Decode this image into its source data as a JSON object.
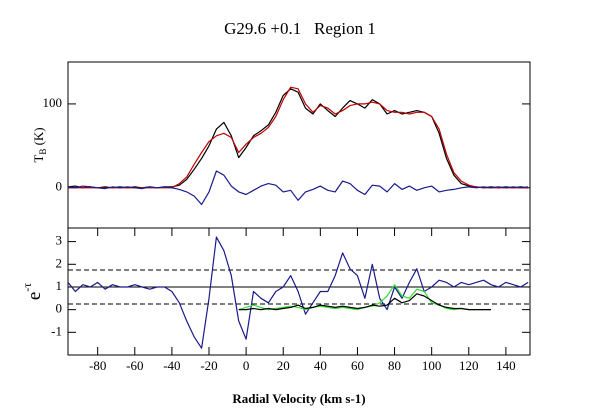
{
  "chart_data": [
    {
      "type": "line",
      "title": "G29.6 +0.1   Region 1",
      "ylabel": {
        "base": "T",
        "sub": "B",
        "rest": " (K)"
      },
      "x": [
        -96,
        -92,
        -88,
        -84,
        -80,
        -76,
        -72,
        -68,
        -64,
        -60,
        -56,
        -52,
        -48,
        -44,
        -40,
        -36,
        -32,
        -28,
        -24,
        -20,
        -16,
        -12,
        -8,
        -4,
        0,
        4,
        8,
        12,
        16,
        20,
        24,
        28,
        32,
        36,
        40,
        44,
        48,
        52,
        56,
        60,
        64,
        68,
        72,
        76,
        80,
        84,
        88,
        92,
        96,
        100,
        104,
        108,
        112,
        116,
        120,
        124,
        128,
        132,
        136,
        140,
        144,
        148,
        152
      ],
      "xlim": [
        -96,
        153
      ],
      "ylim": [
        -48,
        150
      ],
      "yticks": [
        0,
        100
      ],
      "series": [
        {
          "color": "#000000",
          "values": [
            1,
            2,
            0,
            1,
            0,
            1,
            0,
            1,
            0,
            1,
            0,
            1,
            0,
            1,
            1,
            3,
            10,
            22,
            35,
            50,
            70,
            78,
            62,
            36,
            48,
            62,
            68,
            75,
            90,
            110,
            118,
            114,
            95,
            88,
            100,
            92,
            85,
            95,
            104,
            100,
            95,
            105,
            100,
            88,
            92,
            88,
            90,
            92,
            90,
            85,
            65,
            35,
            15,
            5,
            2,
            1,
            0,
            1,
            0,
            1,
            0,
            1,
            0
          ]
        },
        {
          "color": "#c00000",
          "values": [
            0,
            0,
            0,
            0,
            0,
            0,
            0,
            0,
            0,
            0,
            0,
            0,
            0,
            0,
            0,
            5,
            13,
            28,
            42,
            55,
            62,
            65,
            60,
            42,
            52,
            60,
            65,
            72,
            85,
            105,
            120,
            118,
            100,
            90,
            98,
            95,
            88,
            92,
            98,
            100,
            100,
            102,
            100,
            92,
            90,
            90,
            88,
            90,
            90,
            85,
            70,
            40,
            18,
            8,
            3,
            1,
            0,
            0,
            0,
            0,
            0,
            0,
            0
          ]
        },
        {
          "color": "#1a1a8c",
          "values": [
            1,
            0,
            2,
            1,
            0,
            -1,
            1,
            0,
            1,
            0,
            -1,
            1,
            0,
            1,
            0,
            -2,
            -5,
            -10,
            -20,
            -5,
            20,
            15,
            2,
            -5,
            -8,
            -3,
            2,
            5,
            3,
            -5,
            -3,
            -15,
            -5,
            -2,
            2,
            -3,
            -5,
            8,
            5,
            -3,
            -8,
            3,
            2,
            -5,
            5,
            -2,
            2,
            -3,
            0,
            2,
            -5,
            -3,
            -2,
            0,
            1,
            0,
            1,
            0,
            1,
            0,
            1,
            0,
            1
          ]
        }
      ]
    },
    {
      "type": "line",
      "xlabel": "Radial Velocity (km s-1)",
      "ylabel": {
        "base": "e",
        "sup": "-τ"
      },
      "x": [
        -96,
        -92,
        -88,
        -84,
        -80,
        -76,
        -72,
        -68,
        -64,
        -60,
        -56,
        -52,
        -48,
        -44,
        -40,
        -36,
        -32,
        -28,
        -24,
        -20,
        -16,
        -12,
        -8,
        -4,
        0,
        4,
        8,
        12,
        16,
        20,
        24,
        28,
        32,
        36,
        40,
        44,
        48,
        52,
        56,
        60,
        64,
        68,
        72,
        76,
        80,
        84,
        88,
        92,
        96,
        100,
        104,
        108,
        112,
        116,
        120,
        124,
        128,
        132,
        136,
        140,
        144,
        148,
        152
      ],
      "xlim": [
        -96,
        153
      ],
      "ylim": [
        -2,
        3.6
      ],
      "yticks": [
        -1,
        0,
        1,
        2,
        3
      ],
      "xticks": [
        -80,
        -60,
        -40,
        -20,
        0,
        20,
        40,
        60,
        80,
        100,
        120,
        140
      ],
      "hlines": [
        {
          "value": 1.75,
          "style": "dashed"
        },
        {
          "value": 1,
          "style": "solid"
        },
        {
          "value": 0.25,
          "style": "dashed"
        }
      ],
      "series": [
        {
          "color": "#1a1a8c",
          "values": [
            1.2,
            0.8,
            1.1,
            1.0,
            1.2,
            0.9,
            1.1,
            1.0,
            1.0,
            1.1,
            1.0,
            0.9,
            1.0,
            1.0,
            0.8,
            0.3,
            -0.5,
            -1.2,
            -1.7,
            0.5,
            3.2,
            2.6,
            1.5,
            -0.5,
            -1.3,
            0.8,
            0.5,
            0.3,
            0.8,
            1.0,
            1.5,
            0.8,
            -0.2,
            0.3,
            0.8,
            0.8,
            1.5,
            2.5,
            1.8,
            1.5,
            0.5,
            2.0,
            0.5,
            0.0,
            1.0,
            0.5,
            1.2,
            1.8,
            0.8,
            1.0,
            1.3,
            1.2,
            1.0,
            1.2,
            1.1,
            1.2,
            1.3,
            1.1,
            1.0,
            1.2,
            1.1,
            1.0,
            1.2
          ]
        },
        {
          "color": "#33dd33",
          "values": [
            null,
            null,
            null,
            null,
            null,
            null,
            null,
            null,
            null,
            null,
            null,
            null,
            null,
            null,
            null,
            null,
            null,
            null,
            null,
            null,
            null,
            null,
            null,
            0,
            0.1,
            0.2,
            0.1,
            0,
            0.05,
            0.1,
            0.15,
            0.1,
            0,
            0.1,
            0.15,
            0.1,
            0.05,
            0.1,
            0.05,
            0,
            0.1,
            0.15,
            0.3,
            0.6,
            1.1,
            0.6,
            0.5,
            0.9,
            0.8,
            0.3,
            0.2,
            0.05,
            0,
            0.05,
            0,
            0,
            0,
            0,
            null,
            null,
            null,
            null,
            null
          ]
        },
        {
          "color": "#000000",
          "values": [
            null,
            null,
            null,
            null,
            null,
            null,
            null,
            null,
            null,
            null,
            null,
            null,
            null,
            null,
            null,
            null,
            null,
            null,
            null,
            null,
            null,
            null,
            null,
            0,
            0,
            0.05,
            0,
            0.05,
            0,
            0.05,
            0.1,
            0.2,
            0.05,
            0.1,
            0.2,
            0.15,
            0.1,
            0.15,
            0.1,
            0.05,
            0.1,
            0.2,
            0.15,
            0.2,
            0.5,
            0.3,
            0.4,
            0.7,
            0.6,
            0.4,
            0.2,
            0.1,
            0.05,
            0.05,
            0,
            0,
            0,
            0,
            null,
            null,
            null,
            null,
            null
          ]
        }
      ]
    }
  ]
}
